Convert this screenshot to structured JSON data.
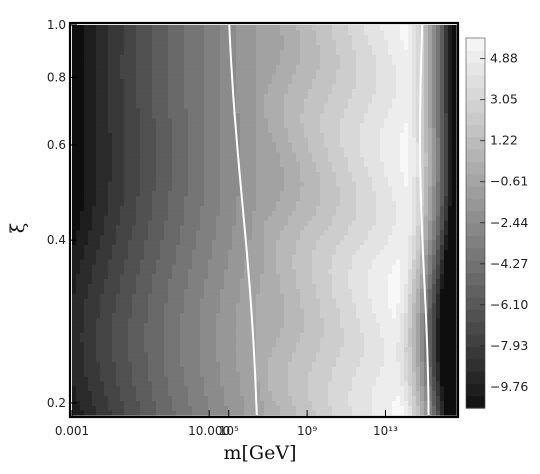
{
  "chart_data": {
    "type": "heatmap",
    "subtype": "filled-contour",
    "title": "",
    "xlabel": "m[GeV]",
    "ylabel": "ξ",
    "x_scale": "log",
    "x_range_log10": [
      -3,
      16.6
    ],
    "x_ticks": [
      {
        "log10": -3,
        "label": "0.001"
      },
      {
        "log10": 4,
        "label": "10.000"
      },
      {
        "log10": 5,
        "label": "10⁵"
      },
      {
        "log10": 9,
        "label": "10⁹"
      },
      {
        "log10": 13,
        "label": "10¹³"
      }
    ],
    "y_scale": "log",
    "y_range": [
      0.19,
      1.0
    ],
    "y_ticks": [
      {
        "value": 0.2,
        "label": "0.2"
      },
      {
        "value": 0.4,
        "label": "0.4"
      },
      {
        "value": 0.6,
        "label": "0.6"
      },
      {
        "value": 0.8,
        "label": "0.8"
      },
      {
        "value": 1.0,
        "label": "1.0"
      }
    ],
    "colorbar": {
      "range": [
        -10.7,
        5.8
      ],
      "colormap": "grayscale (dark = low, light = high)",
      "tick_values": [
        4.88,
        3.05,
        1.22,
        -0.61,
        -2.44,
        -4.27,
        -6.1,
        -7.93,
        -9.76
      ],
      "tick_labels": [
        "4.88",
        "3.05",
        "1.22",
        "−0.61",
        "−2.44",
        "−4.27",
        "−6.10",
        "−7.93",
        "−9.76"
      ]
    },
    "highlighted_contours": [
      {
        "approx_log10_m_range": [
          5,
          6.5
        ],
        "color": "#ffffff"
      },
      {
        "approx_log10_m_range": [
          14.7,
          15.2
        ],
        "color": "#ffffff"
      }
    ],
    "grid": false
  }
}
